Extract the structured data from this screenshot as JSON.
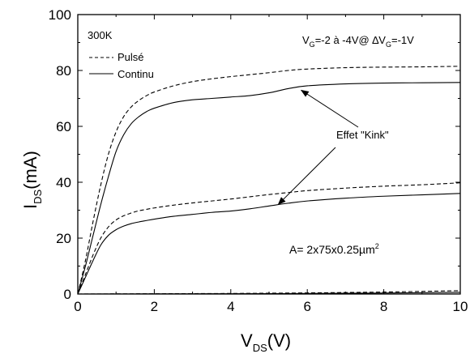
{
  "chart_data": {
    "type": "line",
    "xlabel": {
      "main": "V",
      "sub": "DS",
      "unit": "(V)"
    },
    "ylabel": {
      "main": "I",
      "sub": "DS",
      "unit": "(mA)"
    },
    "xlim": [
      0,
      10
    ],
    "ylim": [
      0,
      100
    ],
    "xticks": [
      0,
      2,
      4,
      6,
      8,
      10
    ],
    "yticks": [
      0,
      20,
      40,
      60,
      80,
      100
    ],
    "grid": false,
    "legend": {
      "placement": "top-left",
      "header": "300K"
    },
    "series": [
      {
        "name": "Pulsé",
        "style": "dashed",
        "curves": [
          {
            "x": [
              0,
              0.2,
              0.4,
              0.6,
              0.8,
              1.0,
              1.2,
              1.4,
              1.6,
              1.8,
              2.0,
              2.5,
              3.0,
              3.5,
              4.0,
              4.5,
              5.0,
              5.5,
              6.0,
              7.0,
              8.0,
              9.0,
              10.0
            ],
            "y": [
              0,
              12,
              26,
              39,
              50,
              58,
              63.5,
              67,
              69.3,
              71,
              72.3,
              74.5,
              76,
              77,
              77.8,
              78.5,
              79.2,
              80,
              80.5,
              81,
              81.2,
              81.3,
              81.5
            ]
          },
          {
            "x": [
              0,
              0.2,
              0.4,
              0.6,
              0.8,
              1.0,
              1.2,
              1.4,
              1.6,
              1.8,
              2.0,
              2.5,
              3.0,
              3.5,
              4.0,
              4.5,
              5.0,
              5.5,
              6.0,
              7.0,
              8.0,
              9.0,
              10.0
            ],
            "y": [
              0,
              7,
              14,
              20,
              24,
              26.5,
              28,
              29,
              29.8,
              30.3,
              30.8,
              31.8,
              32.6,
              33.3,
              34,
              34.8,
              35.6,
              36.3,
              37,
              37.9,
              38.6,
              39.1,
              39.8
            ]
          },
          {
            "x": [
              0,
              2,
              4,
              6,
              8,
              10
            ],
            "y": [
              0,
              0.1,
              0.2,
              0.4,
              0.7,
              1.2
            ]
          }
        ]
      },
      {
        "name": "Continu",
        "style": "solid",
        "curves": [
          {
            "x": [
              0,
              0.2,
              0.4,
              0.6,
              0.8,
              1.0,
              1.2,
              1.4,
              1.6,
              1.8,
              2.0,
              2.5,
              3.0,
              3.5,
              4.0,
              4.5,
              5.0,
              5.5,
              6.0,
              7.0,
              8.0,
              9.0,
              10.0
            ],
            "y": [
              0,
              10,
              21,
              32,
              42,
              51,
              57,
              61,
              63.5,
              65.3,
              66.5,
              68.5,
              69.5,
              70,
              70.5,
              71,
              72,
              73.5,
              74.5,
              75.2,
              75.5,
              75.6,
              75.7
            ]
          },
          {
            "x": [
              0,
              0.2,
              0.4,
              0.6,
              0.8,
              1.0,
              1.2,
              1.4,
              1.6,
              1.8,
              2.0,
              2.5,
              3.0,
              3.5,
              4.0,
              4.5,
              5.0,
              5.5,
              6.0,
              7.0,
              8.0,
              9.0,
              10.0
            ],
            "y": [
              0,
              6,
              12,
              17.5,
              21,
              23,
              24.3,
              25.2,
              25.8,
              26.3,
              26.8,
              27.8,
              28.5,
              29.2,
              29.7,
              30.5,
              31.5,
              32.5,
              33.3,
              34.3,
              35,
              35.5,
              36
            ]
          },
          {
            "x": [
              0,
              2,
              4,
              6,
              8,
              10
            ],
            "y": [
              0,
              0.05,
              0.1,
              0.2,
              0.35,
              0.6
            ]
          }
        ]
      }
    ],
    "annotations": {
      "condition": {
        "v": "V",
        "g_sub": "G",
        "mid": "=-2 à -4V@ ∆V",
        "g_sub2": "G",
        "end": "=-1V"
      },
      "kink_label": "Effet \"Kink\"",
      "kink_points": [
        {
          "x": 5.8,
          "y": 73.5
        },
        {
          "x": 5.2,
          "y": 31.5
        }
      ],
      "area_label": {
        "main": "A= 2x75x0.25µm",
        "sup": "2"
      }
    }
  }
}
